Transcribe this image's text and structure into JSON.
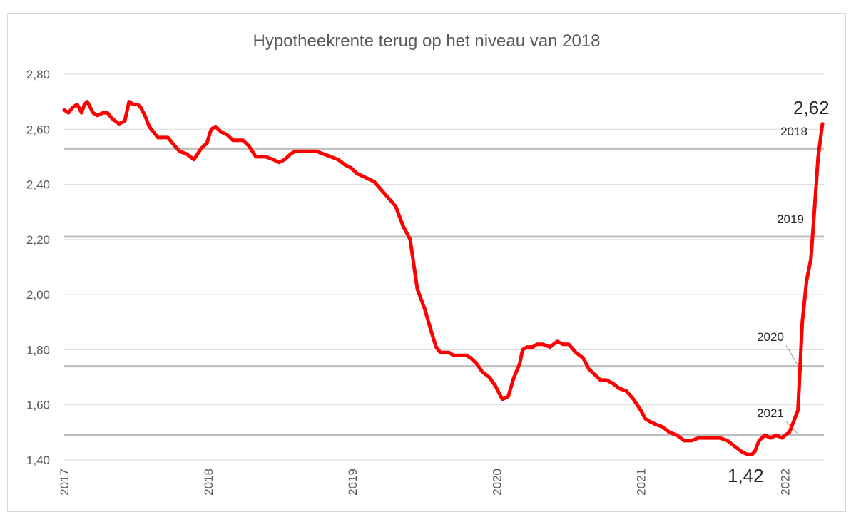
{
  "chart_data": {
    "type": "line",
    "title": "Hypotheekrente terug op het niveau van 2018",
    "xlabel": "",
    "ylabel": "",
    "ylim": [
      1.4,
      2.8
    ],
    "y_ticks": [
      "2,80",
      "2,60",
      "2,40",
      "2,20",
      "2,00",
      "1,80",
      "1,60",
      "1,40"
    ],
    "x_ticks": [
      "2017",
      "2018",
      "2019",
      "2020",
      "2021",
      "2022"
    ],
    "xlim": [
      2017.0,
      2022.27
    ],
    "grid": true,
    "legend": "none",
    "series": [
      {
        "color": "#ff0000",
        "x": [
          2017.0,
          2017.03,
          2017.06,
          2017.09,
          2017.12,
          2017.14,
          2017.16,
          2017.18,
          2017.2,
          2017.23,
          2017.27,
          2017.3,
          2017.33,
          2017.38,
          2017.42,
          2017.45,
          2017.48,
          2017.51,
          2017.53,
          2017.56,
          2017.59,
          2017.62,
          2017.65,
          2017.68,
          2017.72,
          2017.75,
          2017.8,
          2017.85,
          2017.9,
          2017.95,
          2017.99,
          2018.02,
          2018.05,
          2018.09,
          2018.13,
          2018.17,
          2018.21,
          2018.24,
          2018.28,
          2018.33,
          2018.37,
          2018.4,
          2018.45,
          2018.49,
          2018.53,
          2018.57,
          2018.6,
          2018.62,
          2018.66,
          2018.7,
          2018.75,
          2018.8,
          2018.85,
          2018.9,
          2018.95,
          2018.99,
          2019.03,
          2019.07,
          2019.11,
          2019.15,
          2019.2,
          2019.25,
          2019.3,
          2019.35,
          2019.4,
          2019.45,
          2019.5,
          2019.55,
          2019.58,
          2019.61,
          2019.64,
          2019.67,
          2019.7,
          2019.73,
          2019.76,
          2019.79,
          2019.82,
          2019.86,
          2019.9,
          2019.95,
          2019.99,
          2020.04,
          2020.08,
          2020.12,
          2020.16,
          2020.18,
          2020.21,
          2020.23,
          2020.25,
          2020.28,
          2020.32,
          2020.37,
          2020.42,
          2020.46,
          2020.5,
          2020.55,
          2020.6,
          2020.64,
          2020.68,
          2020.72,
          2020.76,
          2020.8,
          2020.85,
          2020.9,
          2020.95,
          2021.0,
          2021.03,
          2021.06,
          2021.1,
          2021.15,
          2021.2,
          2021.25,
          2021.3,
          2021.35,
          2021.4,
          2021.45,
          2021.5,
          2021.55,
          2021.6,
          2021.65,
          2021.7,
          2021.74,
          2021.77,
          2021.79,
          2021.82,
          2021.86,
          2021.9,
          2021.94,
          2021.98,
          2022.0,
          2022.03,
          2022.06,
          2022.09,
          2022.12,
          2022.15,
          2022.18,
          2022.21,
          2022.23,
          2022.26
        ],
        "values": [
          2.67,
          2.66,
          2.68,
          2.69,
          2.66,
          2.69,
          2.7,
          2.68,
          2.66,
          2.65,
          2.66,
          2.66,
          2.64,
          2.62,
          2.63,
          2.7,
          2.69,
          2.69,
          2.68,
          2.65,
          2.61,
          2.59,
          2.57,
          2.57,
          2.57,
          2.55,
          2.52,
          2.51,
          2.49,
          2.53,
          2.55,
          2.6,
          2.61,
          2.59,
          2.58,
          2.56,
          2.56,
          2.56,
          2.54,
          2.5,
          2.5,
          2.5,
          2.49,
          2.48,
          2.49,
          2.51,
          2.52,
          2.52,
          2.52,
          2.52,
          2.52,
          2.51,
          2.5,
          2.49,
          2.47,
          2.46,
          2.44,
          2.43,
          2.42,
          2.41,
          2.38,
          2.35,
          2.32,
          2.25,
          2.2,
          2.02,
          1.95,
          1.86,
          1.81,
          1.79,
          1.79,
          1.79,
          1.78,
          1.78,
          1.78,
          1.78,
          1.77,
          1.75,
          1.72,
          1.7,
          1.67,
          1.62,
          1.63,
          1.7,
          1.75,
          1.8,
          1.81,
          1.81,
          1.81,
          1.82,
          1.82,
          1.81,
          1.83,
          1.82,
          1.82,
          1.79,
          1.77,
          1.73,
          1.71,
          1.69,
          1.69,
          1.68,
          1.66,
          1.65,
          1.62,
          1.58,
          1.55,
          1.54,
          1.53,
          1.52,
          1.5,
          1.49,
          1.47,
          1.47,
          1.48,
          1.48,
          1.48,
          1.48,
          1.47,
          1.45,
          1.43,
          1.42,
          1.42,
          1.43,
          1.47,
          1.49,
          1.48,
          1.49,
          1.48,
          1.49,
          1.5,
          1.54,
          1.58,
          1.9,
          2.05,
          2.13,
          2.35,
          2.5,
          2.62
        ]
      }
    ],
    "reference_lines": [
      {
        "label": "2018",
        "value": 2.53
      },
      {
        "label": "2019",
        "value": 2.21
      },
      {
        "label": "2020",
        "value": 1.74
      },
      {
        "label": "2021",
        "value": 1.49
      }
    ],
    "annotations": {
      "end_value": "2,62",
      "min_value": "1,42"
    }
  }
}
